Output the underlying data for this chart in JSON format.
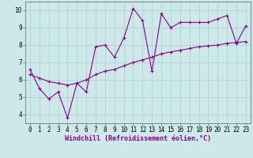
{
  "xlabel": "Windchill (Refroidissement éolien,°C)",
  "x_data": [
    0,
    1,
    2,
    3,
    4,
    5,
    6,
    7,
    8,
    9,
    10,
    11,
    12,
    13,
    14,
    15,
    16,
    17,
    18,
    19,
    20,
    21,
    22,
    23
  ],
  "y_jagged": [
    6.6,
    5.5,
    4.9,
    5.3,
    3.8,
    5.8,
    5.3,
    7.9,
    8.0,
    7.3,
    8.4,
    10.1,
    9.4,
    6.5,
    9.8,
    9.0,
    9.3,
    9.3,
    9.3,
    9.3,
    9.5,
    9.7,
    8.1,
    9.1
  ],
  "y_smooth": [
    6.3,
    6.1,
    5.9,
    5.8,
    5.7,
    5.8,
    6.0,
    6.3,
    6.5,
    6.6,
    6.8,
    7.0,
    7.15,
    7.3,
    7.5,
    7.6,
    7.7,
    7.8,
    7.9,
    7.95,
    8.0,
    8.1,
    8.15,
    8.2
  ],
  "line_color": "#8b008b",
  "bg_color": "#cce8e8",
  "grid_color": "#aacfcf",
  "spine_color": "#606060",
  "xlabel_color": "#8b008b",
  "ylim": [
    3.5,
    10.5
  ],
  "xlim": [
    -0.5,
    23.5
  ],
  "yticks": [
    4,
    5,
    6,
    7,
    8,
    9,
    10
  ],
  "xticks": [
    0,
    1,
    2,
    3,
    4,
    5,
    6,
    7,
    8,
    9,
    10,
    11,
    12,
    13,
    14,
    15,
    16,
    17,
    18,
    19,
    20,
    21,
    22,
    23
  ],
  "tick_fontsize": 5.5,
  "label_fontsize": 6.0,
  "linewidth": 0.8,
  "markersize": 2.5,
  "markeredgewidth": 0.8
}
